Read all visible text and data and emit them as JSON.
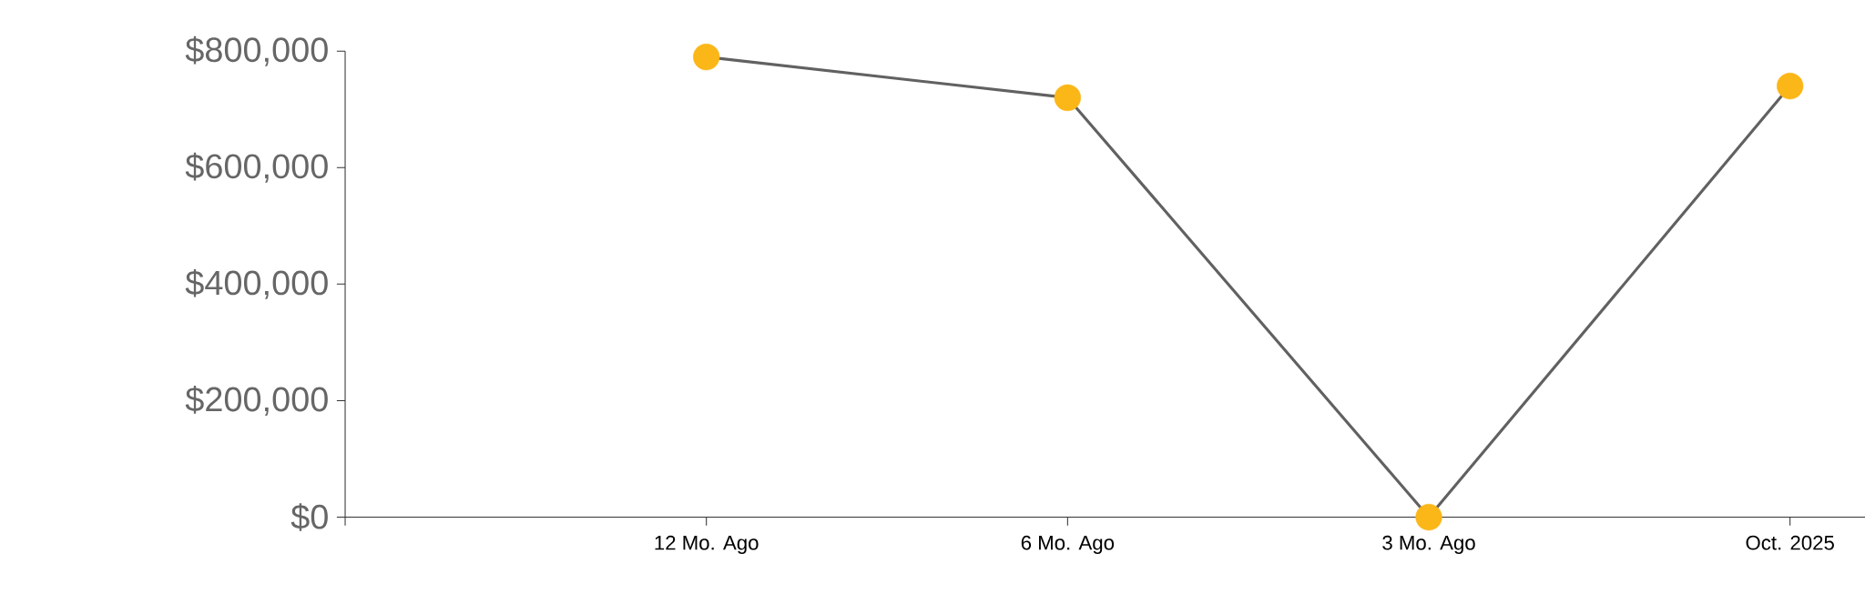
{
  "chart_data": {
    "type": "line",
    "categories": [
      null,
      "12 Mo. Ago",
      "6 Mo. Ago",
      "3 Mo. Ago",
      "Oct. 2025"
    ],
    "series": [
      {
        "color": "#616161",
        "colors": [
          null,
          "#fbb617",
          "#fbb617",
          "#fbb617",
          "#fbb617"
        ],
        "values": [
          null,
          790000,
          720000,
          0,
          740000
        ]
      }
    ],
    "marker": "circle",
    "ylim": [
      0,
      800000
    ],
    "yticks": [
      {
        "value": 0,
        "label": "$0"
      },
      {
        "value": 200000,
        "label": "$200,000"
      },
      {
        "value": 400000,
        "label": "$400,000"
      },
      {
        "value": 600000,
        "label": "$600,000"
      },
      {
        "value": 800000,
        "label": "$800,000"
      }
    ]
  }
}
